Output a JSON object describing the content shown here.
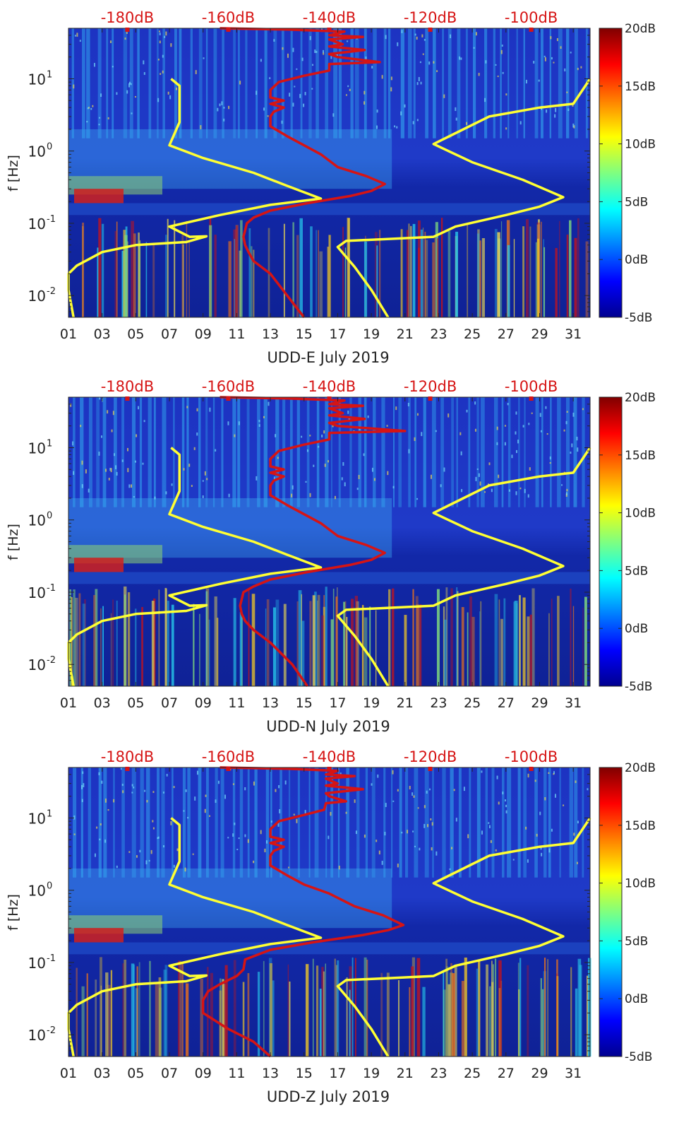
{
  "figure": {
    "background": "#ffffff",
    "colors": {
      "spectrogram_background": "#1a2fb0",
      "noise_model_line": "#ffff33",
      "median_psd_line": "#d61414",
      "db_scale_text": "#d61414",
      "tick_text": "#222222"
    }
  },
  "chart_data": [
    {
      "type": "heatmap",
      "xlabel": "UDD-E July 2019",
      "ylabel": "f [Hz]",
      "x_tick_labels": [
        "01",
        "03",
        "05",
        "07",
        "09",
        "11",
        "13",
        "15",
        "17",
        "19",
        "21",
        "23",
        "25",
        "27",
        "29",
        "31"
      ],
      "x_ticks": [
        1,
        3,
        5,
        7,
        9,
        11,
        13,
        15,
        17,
        19,
        21,
        23,
        25,
        27,
        29,
        31
      ],
      "xlim": [
        1,
        32
      ],
      "y_scale": "log",
      "ylim": [
        0.005,
        50
      ],
      "y_tick_labels": [
        "10^-2",
        "10^-1",
        "10^0",
        "10^1"
      ],
      "y_ticks": [
        0.01,
        0.1,
        1,
        10
      ],
      "top_axis_labels": [
        "-180dB",
        "-160dB",
        "-140dB",
        "-120dB",
        "-100dB"
      ],
      "top_axis_ticks": [
        4.5,
        10.5,
        16.5,
        22.5,
        28.5
      ],
      "colorbar": {
        "labels": [
          "20dB",
          "15dB",
          "10dB",
          "5dB",
          "0dB",
          "-5dB"
        ],
        "range": [
          -5,
          20
        ],
        "colormap": "jet"
      },
      "yellow_curves": [
        [
          [
            7.1,
            10
          ],
          [
            7.6,
            8
          ],
          [
            7.6,
            5
          ],
          [
            7.6,
            2.5
          ],
          [
            7.0,
            1.2
          ],
          [
            9,
            0.8
          ],
          [
            12,
            0.5
          ],
          [
            14,
            0.33
          ],
          [
            16,
            0.22
          ],
          [
            13,
            0.18
          ],
          [
            10,
            0.13
          ],
          [
            7,
            0.09
          ],
          [
            8.2,
            0.065
          ],
          [
            9.2,
            0.066
          ],
          [
            8,
            0.055
          ],
          [
            5,
            0.05
          ],
          [
            3,
            0.04
          ],
          [
            1.5,
            0.026
          ],
          [
            1,
            0.02
          ],
          [
            1,
            0.012
          ],
          [
            1.3,
            0.005
          ]
        ],
        [
          [
            32,
            10
          ],
          [
            31,
            4.5
          ],
          [
            29,
            4
          ],
          [
            26,
            3
          ],
          [
            22.7,
            1.25
          ],
          [
            25,
            0.7
          ],
          [
            28,
            0.4
          ],
          [
            30.4,
            0.23
          ],
          [
            29,
            0.17
          ],
          [
            27,
            0.13
          ],
          [
            24,
            0.09
          ],
          [
            22.7,
            0.065
          ],
          [
            19.5,
            0.06
          ],
          [
            17.5,
            0.057
          ],
          [
            17,
            0.047
          ],
          [
            18,
            0.025
          ],
          [
            19,
            0.012
          ],
          [
            20,
            0.005
          ]
        ]
      ],
      "red_curve": [
        [
          10,
          50
        ],
        [
          14,
          48
        ],
        [
          17.4,
          45
        ],
        [
          16.5,
          40
        ],
        [
          18.5,
          38
        ],
        [
          16.5,
          35
        ],
        [
          17.3,
          30
        ],
        [
          16.5,
          28
        ],
        [
          18.6,
          25
        ],
        [
          16.5,
          22
        ],
        [
          17,
          20
        ],
        [
          19.5,
          17
        ],
        [
          16.5,
          16
        ],
        [
          16.5,
          13
        ],
        [
          15,
          11
        ],
        [
          13.5,
          9
        ],
        [
          13,
          7
        ],
        [
          13,
          5.5
        ],
        [
          13.8,
          5
        ],
        [
          13,
          4.5
        ],
        [
          13.8,
          4
        ],
        [
          13.2,
          3.5
        ],
        [
          13,
          3
        ],
        [
          13,
          2.2
        ],
        [
          14,
          1.6
        ],
        [
          15,
          1.2
        ],
        [
          16,
          0.9
        ],
        [
          17,
          0.6
        ],
        [
          18.7,
          0.45
        ],
        [
          19.8,
          0.35
        ],
        [
          19,
          0.28
        ],
        [
          17.8,
          0.24
        ],
        [
          15.2,
          0.19
        ],
        [
          13,
          0.15
        ],
        [
          12,
          0.12
        ],
        [
          11.6,
          0.1
        ],
        [
          11.5,
          0.08
        ],
        [
          11.4,
          0.065
        ],
        [
          11.5,
          0.05
        ],
        [
          11.7,
          0.04
        ],
        [
          12,
          0.03
        ],
        [
          13,
          0.02
        ],
        [
          14,
          0.01
        ],
        [
          15,
          0.005
        ]
      ]
    },
    {
      "type": "heatmap",
      "xlabel": "UDD-N July 2019",
      "ylabel": "f [Hz]",
      "x_tick_labels": [
        "01",
        "03",
        "05",
        "07",
        "09",
        "11",
        "13",
        "15",
        "17",
        "19",
        "21",
        "23",
        "25",
        "27",
        "29",
        "31"
      ],
      "x_ticks": [
        1,
        3,
        5,
        7,
        9,
        11,
        13,
        15,
        17,
        19,
        21,
        23,
        25,
        27,
        29,
        31
      ],
      "xlim": [
        1,
        32
      ],
      "y_scale": "log",
      "ylim": [
        0.005,
        50
      ],
      "y_tick_labels": [
        "10^-2",
        "10^-1",
        "10^0",
        "10^1"
      ],
      "y_ticks": [
        0.01,
        0.1,
        1,
        10
      ],
      "top_axis_labels": [
        "-180dB",
        "-160dB",
        "-140dB",
        "-120dB",
        "-100dB"
      ],
      "top_axis_ticks": [
        4.5,
        10.5,
        16.5,
        22.5,
        28.5
      ],
      "colorbar": {
        "labels": [
          "20dB",
          "15dB",
          "10dB",
          "5dB",
          "0dB",
          "-5dB"
        ],
        "range": [
          -5,
          20
        ],
        "colormap": "jet"
      },
      "yellow_curves": [
        [
          [
            7.1,
            10
          ],
          [
            7.6,
            8
          ],
          [
            7.6,
            5
          ],
          [
            7.6,
            2.5
          ],
          [
            7.0,
            1.2
          ],
          [
            9,
            0.8
          ],
          [
            12,
            0.5
          ],
          [
            14,
            0.33
          ],
          [
            16,
            0.22
          ],
          [
            13,
            0.18
          ],
          [
            10,
            0.13
          ],
          [
            7,
            0.09
          ],
          [
            8.2,
            0.065
          ],
          [
            9.2,
            0.066
          ],
          [
            8,
            0.055
          ],
          [
            5,
            0.05
          ],
          [
            3,
            0.04
          ],
          [
            1.5,
            0.026
          ],
          [
            1,
            0.02
          ],
          [
            1,
            0.012
          ],
          [
            1.3,
            0.005
          ]
        ],
        [
          [
            32,
            10
          ],
          [
            31,
            4.5
          ],
          [
            29,
            4
          ],
          [
            26,
            3
          ],
          [
            22.7,
            1.25
          ],
          [
            25,
            0.7
          ],
          [
            28,
            0.4
          ],
          [
            30.4,
            0.23
          ],
          [
            29,
            0.17
          ],
          [
            27,
            0.13
          ],
          [
            24,
            0.09
          ],
          [
            22.7,
            0.065
          ],
          [
            19.5,
            0.06
          ],
          [
            17.5,
            0.057
          ],
          [
            17,
            0.047
          ],
          [
            18,
            0.025
          ],
          [
            19,
            0.012
          ],
          [
            20,
            0.005
          ]
        ]
      ],
      "red_curve": [
        [
          10,
          50
        ],
        [
          14,
          48
        ],
        [
          17.4,
          45
        ],
        [
          16.5,
          40
        ],
        [
          18.5,
          38
        ],
        [
          16.5,
          35
        ],
        [
          17.3,
          30
        ],
        [
          16.5,
          28
        ],
        [
          18.6,
          25
        ],
        [
          16.5,
          22
        ],
        [
          17,
          20
        ],
        [
          21,
          17
        ],
        [
          16.5,
          16
        ],
        [
          16.5,
          13
        ],
        [
          15,
          11
        ],
        [
          13.5,
          9
        ],
        [
          13,
          7
        ],
        [
          13,
          5.5
        ],
        [
          13.8,
          5
        ],
        [
          13,
          4.5
        ],
        [
          13.8,
          4
        ],
        [
          13.2,
          3.5
        ],
        [
          13,
          3
        ],
        [
          13,
          2.2
        ],
        [
          14,
          1.6
        ],
        [
          15,
          1.2
        ],
        [
          16,
          0.9
        ],
        [
          17,
          0.6
        ],
        [
          18.7,
          0.45
        ],
        [
          19.8,
          0.35
        ],
        [
          19,
          0.28
        ],
        [
          17.8,
          0.24
        ],
        [
          15.2,
          0.19
        ],
        [
          13,
          0.15
        ],
        [
          12,
          0.12
        ],
        [
          11.4,
          0.1
        ],
        [
          11.3,
          0.08
        ],
        [
          11.2,
          0.065
        ],
        [
          11.3,
          0.05
        ],
        [
          11.5,
          0.04
        ],
        [
          12,
          0.03
        ],
        [
          13,
          0.02
        ],
        [
          14.3,
          0.01
        ],
        [
          15.2,
          0.005
        ]
      ]
    },
    {
      "type": "heatmap",
      "xlabel": "UDD-Z July 2019",
      "ylabel": "f [Hz]",
      "x_tick_labels": [
        "01",
        "03",
        "05",
        "07",
        "09",
        "11",
        "13",
        "15",
        "17",
        "19",
        "21",
        "23",
        "25",
        "27",
        "29",
        "31"
      ],
      "x_ticks": [
        1,
        3,
        5,
        7,
        9,
        11,
        13,
        15,
        17,
        19,
        21,
        23,
        25,
        27,
        29,
        31
      ],
      "xlim": [
        1,
        32
      ],
      "y_scale": "log",
      "ylim": [
        0.005,
        50
      ],
      "y_tick_labels": [
        "10^-2",
        "10^-1",
        "10^0",
        "10^1"
      ],
      "y_ticks": [
        0.01,
        0.1,
        1,
        10
      ],
      "top_axis_labels": [
        "-180dB",
        "-160dB",
        "-140dB",
        "-120dB",
        "-100dB"
      ],
      "top_axis_ticks": [
        4.5,
        10.5,
        16.5,
        22.5,
        28.5
      ],
      "colorbar": {
        "labels": [
          "20dB",
          "15dB",
          "10dB",
          "5dB",
          "0dB",
          "-5dB"
        ],
        "range": [
          -5,
          20
        ],
        "colormap": "jet"
      },
      "yellow_curves": [
        [
          [
            7.1,
            10
          ],
          [
            7.6,
            8
          ],
          [
            7.6,
            5
          ],
          [
            7.6,
            2.5
          ],
          [
            7.0,
            1.2
          ],
          [
            9,
            0.8
          ],
          [
            12,
            0.5
          ],
          [
            14,
            0.33
          ],
          [
            16,
            0.22
          ],
          [
            13,
            0.18
          ],
          [
            10,
            0.13
          ],
          [
            7,
            0.09
          ],
          [
            8.2,
            0.065
          ],
          [
            9.2,
            0.066
          ],
          [
            8,
            0.055
          ],
          [
            5,
            0.05
          ],
          [
            3,
            0.04
          ],
          [
            1.5,
            0.026
          ],
          [
            1,
            0.02
          ],
          [
            1,
            0.012
          ],
          [
            1.3,
            0.005
          ]
        ],
        [
          [
            32,
            10
          ],
          [
            31,
            4.5
          ],
          [
            29,
            4
          ],
          [
            26,
            3
          ],
          [
            22.7,
            1.25
          ],
          [
            25,
            0.7
          ],
          [
            28,
            0.4
          ],
          [
            30.4,
            0.23
          ],
          [
            29,
            0.17
          ],
          [
            27,
            0.13
          ],
          [
            24,
            0.09
          ],
          [
            22.7,
            0.065
          ],
          [
            19.5,
            0.06
          ],
          [
            17.5,
            0.057
          ],
          [
            17,
            0.047
          ],
          [
            18,
            0.025
          ],
          [
            19,
            0.012
          ],
          [
            20,
            0.005
          ]
        ]
      ],
      "red_curve": [
        [
          10,
          50
        ],
        [
          14,
          48
        ],
        [
          17,
          45
        ],
        [
          16.3,
          40
        ],
        [
          18,
          38
        ],
        [
          16.3,
          35
        ],
        [
          17,
          30
        ],
        [
          16.3,
          28
        ],
        [
          18.5,
          25
        ],
        [
          16.3,
          22
        ],
        [
          16.5,
          20
        ],
        [
          17.5,
          17
        ],
        [
          16.3,
          16
        ],
        [
          16.2,
          13
        ],
        [
          15,
          11
        ],
        [
          13.5,
          9
        ],
        [
          13,
          7
        ],
        [
          13,
          5.5
        ],
        [
          13.8,
          5
        ],
        [
          13,
          4.5
        ],
        [
          13.8,
          4
        ],
        [
          13.2,
          3.5
        ],
        [
          13,
          3
        ],
        [
          13,
          2.2
        ],
        [
          14,
          1.6
        ],
        [
          15,
          1.2
        ],
        [
          16.5,
          0.9
        ],
        [
          18,
          0.6
        ],
        [
          19.7,
          0.45
        ],
        [
          20.9,
          0.33
        ],
        [
          20,
          0.28
        ],
        [
          18.5,
          0.24
        ],
        [
          15.5,
          0.19
        ],
        [
          13,
          0.15
        ],
        [
          11.5,
          0.11
        ],
        [
          11.4,
          0.08
        ],
        [
          11,
          0.065
        ],
        [
          10,
          0.05
        ],
        [
          9.3,
          0.04
        ],
        [
          9,
          0.03
        ],
        [
          9,
          0.02
        ],
        [
          10.5,
          0.012
        ],
        [
          12,
          0.008
        ],
        [
          13,
          0.005
        ]
      ]
    }
  ]
}
